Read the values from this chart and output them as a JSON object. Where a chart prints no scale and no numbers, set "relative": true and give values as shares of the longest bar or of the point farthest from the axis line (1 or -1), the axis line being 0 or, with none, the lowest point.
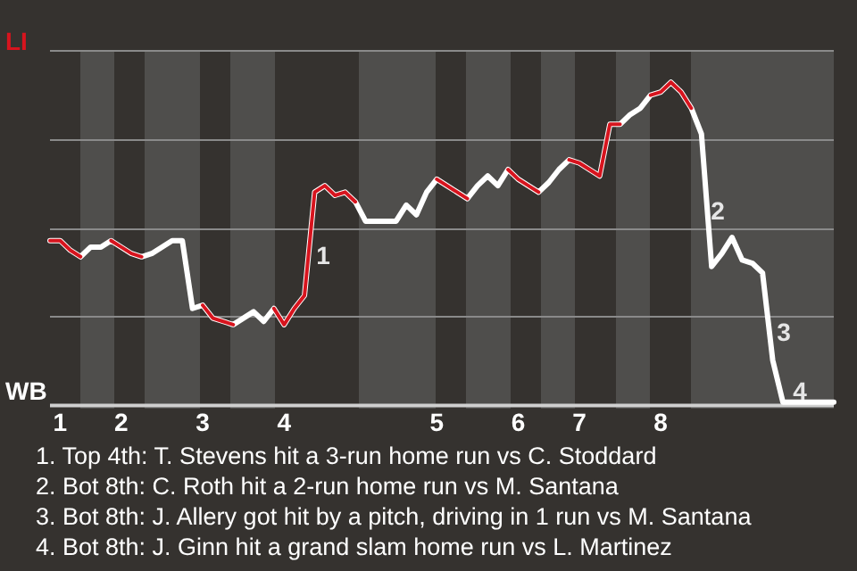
{
  "chart_data": {
    "type": "line",
    "relative": true,
    "categories": [
      null,
      "1",
      null,
      null,
      null,
      null,
      null,
      "2",
      null,
      null,
      null,
      null,
      null,
      null,
      null,
      "3",
      null,
      null,
      null,
      null,
      null,
      null,
      null,
      "4",
      null,
      null,
      null,
      null,
      null,
      null,
      null,
      null,
      null,
      null,
      null,
      null,
      null,
      null,
      "5",
      null,
      null,
      null,
      null,
      null,
      null,
      null,
      "6",
      null,
      null,
      null,
      null,
      null,
      "7",
      null,
      null,
      null,
      null,
      null,
      null,
      null,
      "8",
      null,
      null,
      null,
      null,
      null,
      null,
      null,
      null,
      null,
      null,
      null,
      null,
      null,
      null,
      null,
      null,
      null
    ],
    "series": [
      {
        "color": "#ffffff",
        "values": [
          0.51,
          0.51,
          0.48,
          0.46,
          0.49,
          0.49,
          0.51,
          0.49,
          0.47,
          0.46,
          0.47,
          0.49,
          0.51,
          0.51,
          0.3,
          0.31,
          0.27,
          0.26,
          0.25,
          0.27,
          0.29,
          0.26,
          0.3,
          0.25,
          0.3,
          0.34,
          0.66,
          0.68,
          0.65,
          0.66,
          0.63,
          0.57,
          0.57,
          0.57,
          0.57,
          0.62,
          0.59,
          0.66,
          0.7,
          0.68,
          0.66,
          0.64,
          0.68,
          0.71,
          0.68,
          0.73,
          0.7,
          0.68,
          0.66,
          0.69,
          0.73,
          0.76,
          0.75,
          0.73,
          0.71,
          0.87,
          0.87,
          0.9,
          0.92,
          0.96,
          0.97,
          1,
          0.97,
          0.92,
          0.84,
          0.43,
          0.47,
          0.52,
          0.45,
          0.44,
          0.41,
          0.14,
          0.01,
          0.01,
          0.01,
          0.01,
          0.01,
          0.01
        ]
      },
      {
        "color": "#d7141e",
        "values": [
          0.51,
          0.51,
          0.48,
          0.46,
          null,
          null,
          0.51,
          0.49,
          0.47,
          0.46,
          null,
          null,
          null,
          null,
          null,
          0.31,
          0.27,
          0.26,
          0.25,
          null,
          null,
          null,
          0.3,
          0.25,
          0.3,
          0.34,
          0.66,
          0.68,
          0.65,
          0.66,
          0.63,
          null,
          null,
          null,
          null,
          null,
          null,
          null,
          0.7,
          0.68,
          0.66,
          0.64,
          null,
          null,
          null,
          0.73,
          0.7,
          0.68,
          0.66,
          null,
          null,
          0.76,
          0.75,
          0.73,
          0.71,
          0.87,
          0.87,
          null,
          null,
          0.96,
          0.97,
          1,
          0.97,
          0.92,
          null,
          null,
          null,
          null,
          null,
          null,
          null,
          null,
          null,
          null,
          null,
          null,
          null,
          null
        ]
      }
    ],
    "grid": "y",
    "legend": false,
    "marker": "none",
    "annotations": [
      "LI",
      "WB",
      "1",
      "2",
      "3",
      "4",
      "1. Top 4th: T. Stevens hit a 3-run home run vs C. Stoddard",
      "2. Bot 8th: C. Roth hit a 2-run home run vs M. Santana",
      "3. Bot 8th: J. Allery got hit by a pitch, driving in 1 run vs M. Santana",
      "4. Bot 8th: J. Ginn hit a grand slam home run vs L. Martinez"
    ]
  }
}
